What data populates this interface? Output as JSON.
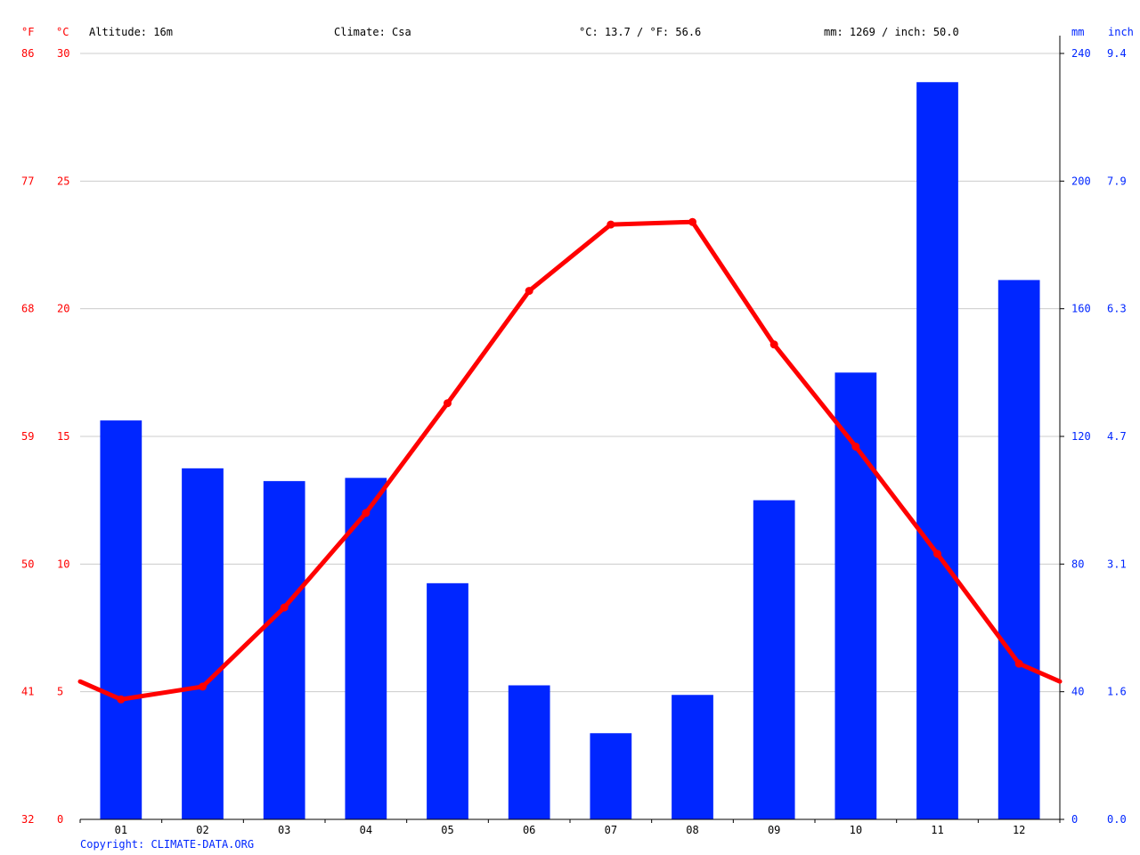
{
  "header": {
    "altitude": "Altitude: 16m",
    "climate": "Climate: Csa",
    "temperature": "°C: 13.7 / °F: 56.6",
    "precipitation": "mm: 1269 / inch: 50.0"
  },
  "units": {
    "fahrenheit": "°F",
    "celsius": "°C",
    "mm": "mm",
    "inch": "inch"
  },
  "copyright": "Copyright: CLIMATE-DATA.ORG",
  "colors": {
    "temperature": "#ff0000",
    "precipitation": "#0026ff",
    "grid": "#cccccc",
    "axis": "#000000"
  },
  "chart_data": {
    "type": "bar",
    "categories": [
      "01",
      "02",
      "03",
      "04",
      "05",
      "06",
      "07",
      "08",
      "09",
      "10",
      "11",
      "12"
    ],
    "series": [
      {
        "kind": "bar",
        "axis": "right",
        "values": [
          125,
          110,
          106,
          107,
          74,
          42,
          27,
          39,
          100,
          140,
          231,
          169
        ]
      },
      {
        "kind": "line",
        "axis": "left",
        "values": [
          4.7,
          5.2,
          8.3,
          12.0,
          16.3,
          20.7,
          23.3,
          23.4,
          18.6,
          14.6,
          10.4,
          6.1
        ],
        "edge_start": 5.4,
        "edge_end": 5.4
      }
    ],
    "left_axis": {
      "ylim": [
        0,
        30
      ],
      "celsius_ticks": [
        "0",
        "5",
        "10",
        "15",
        "20",
        "25",
        "30"
      ],
      "fahrenheit_ticks": [
        "32",
        "41",
        "50",
        "59",
        "68",
        "77",
        "86"
      ]
    },
    "right_axis": {
      "ylim": [
        0,
        240
      ],
      "mm_ticks": [
        "0",
        "40",
        "80",
        "120",
        "160",
        "200",
        "240"
      ],
      "inch_ticks": [
        "0.0",
        "1.6",
        "3.1",
        "4.7",
        "6.3",
        "7.9",
        "9.4"
      ]
    },
    "grid": true,
    "legend": "none"
  }
}
